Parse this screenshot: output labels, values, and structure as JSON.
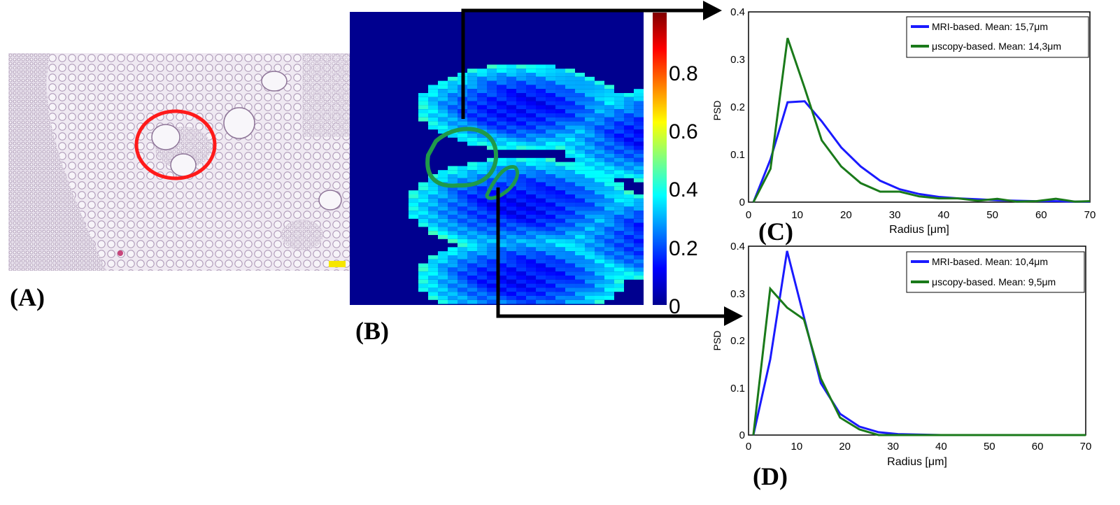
{
  "labels": {
    "a": "(A)",
    "b": "(B)",
    "c": "(C)",
    "d": "(D)"
  },
  "colors": {
    "mri": "#1a1aff",
    "muscopy": "#1a7a1a",
    "roi_circle": "#ff1a1a",
    "outline": "#1f9a4a"
  },
  "colorbar": {
    "ticks": [
      "0",
      "0.2",
      "0.4",
      "0.6",
      "0.8"
    ]
  },
  "chart_data": [
    {
      "id": "C",
      "type": "line",
      "xlabel": "Radius [μm]",
      "ylabel": "PSD",
      "xlim": [
        0,
        70
      ],
      "ylim": [
        0,
        0.4
      ],
      "xticks": [
        "0",
        "10",
        "20",
        "30",
        "40",
        "50",
        "60",
        "70"
      ],
      "yticks": [
        "0",
        "0.1",
        "0.2",
        "0.3",
        "0.4"
      ],
      "legend": "top-right",
      "series": [
        {
          "name": "MRI-based. Mean: 15,7μm",
          "x": [
            1,
            4.5,
            8,
            11.5,
            15,
            19,
            23,
            27,
            31,
            35,
            39,
            43,
            47,
            51,
            55,
            59,
            63,
            67,
            70
          ],
          "y": [
            0,
            0.09,
            0.21,
            0.212,
            0.17,
            0.115,
            0.075,
            0.045,
            0.027,
            0.017,
            0.011,
            0.008,
            0.006,
            0.004,
            0.003,
            0.002,
            0.002,
            0.001,
            0.001
          ]
        },
        {
          "name": "μscopy-based. Mean: 14,3μm",
          "x": [
            1,
            4.5,
            8,
            11.5,
            15,
            19,
            23,
            27,
            31,
            35,
            39,
            43,
            47,
            51,
            55,
            59,
            63,
            67,
            70
          ],
          "y": [
            0,
            0.07,
            0.345,
            0.24,
            0.13,
            0.075,
            0.04,
            0.022,
            0.022,
            0.012,
            0.008,
            0.008,
            0.003,
            0.007,
            0.001,
            0.002,
            0.007,
            0.001,
            0.002
          ]
        }
      ]
    },
    {
      "id": "D",
      "type": "line",
      "xlabel": "Radius [μm]",
      "ylabel": "PSD",
      "xlim": [
        0,
        70
      ],
      "ylim": [
        0,
        0.4
      ],
      "xticks": [
        "0",
        "10",
        "20",
        "30",
        "40",
        "50",
        "60",
        "70"
      ],
      "yticks": [
        "0",
        "0.1",
        "0.2",
        "0.3",
        "0.4"
      ],
      "legend": "top-right",
      "series": [
        {
          "name": "MRI-based. Mean: 10,4μm",
          "x": [
            1,
            4.5,
            8,
            11.5,
            15,
            19,
            23,
            27,
            31,
            35,
            40,
            50,
            60,
            70
          ],
          "y": [
            0,
            0.16,
            0.39,
            0.25,
            0.11,
            0.045,
            0.018,
            0.006,
            0.002,
            0.001,
            0,
            0,
            0,
            0
          ]
        },
        {
          "name": "μscopy-based. Mean: 9,5μm",
          "x": [
            1,
            4.5,
            8,
            11.5,
            15,
            19,
            23,
            27,
            31,
            35,
            40,
            50,
            60,
            70
          ],
          "y": [
            0,
            0.31,
            0.27,
            0.245,
            0.12,
            0.037,
            0.012,
            0,
            0,
            0,
            0,
            0,
            0,
            0
          ]
        }
      ]
    }
  ]
}
